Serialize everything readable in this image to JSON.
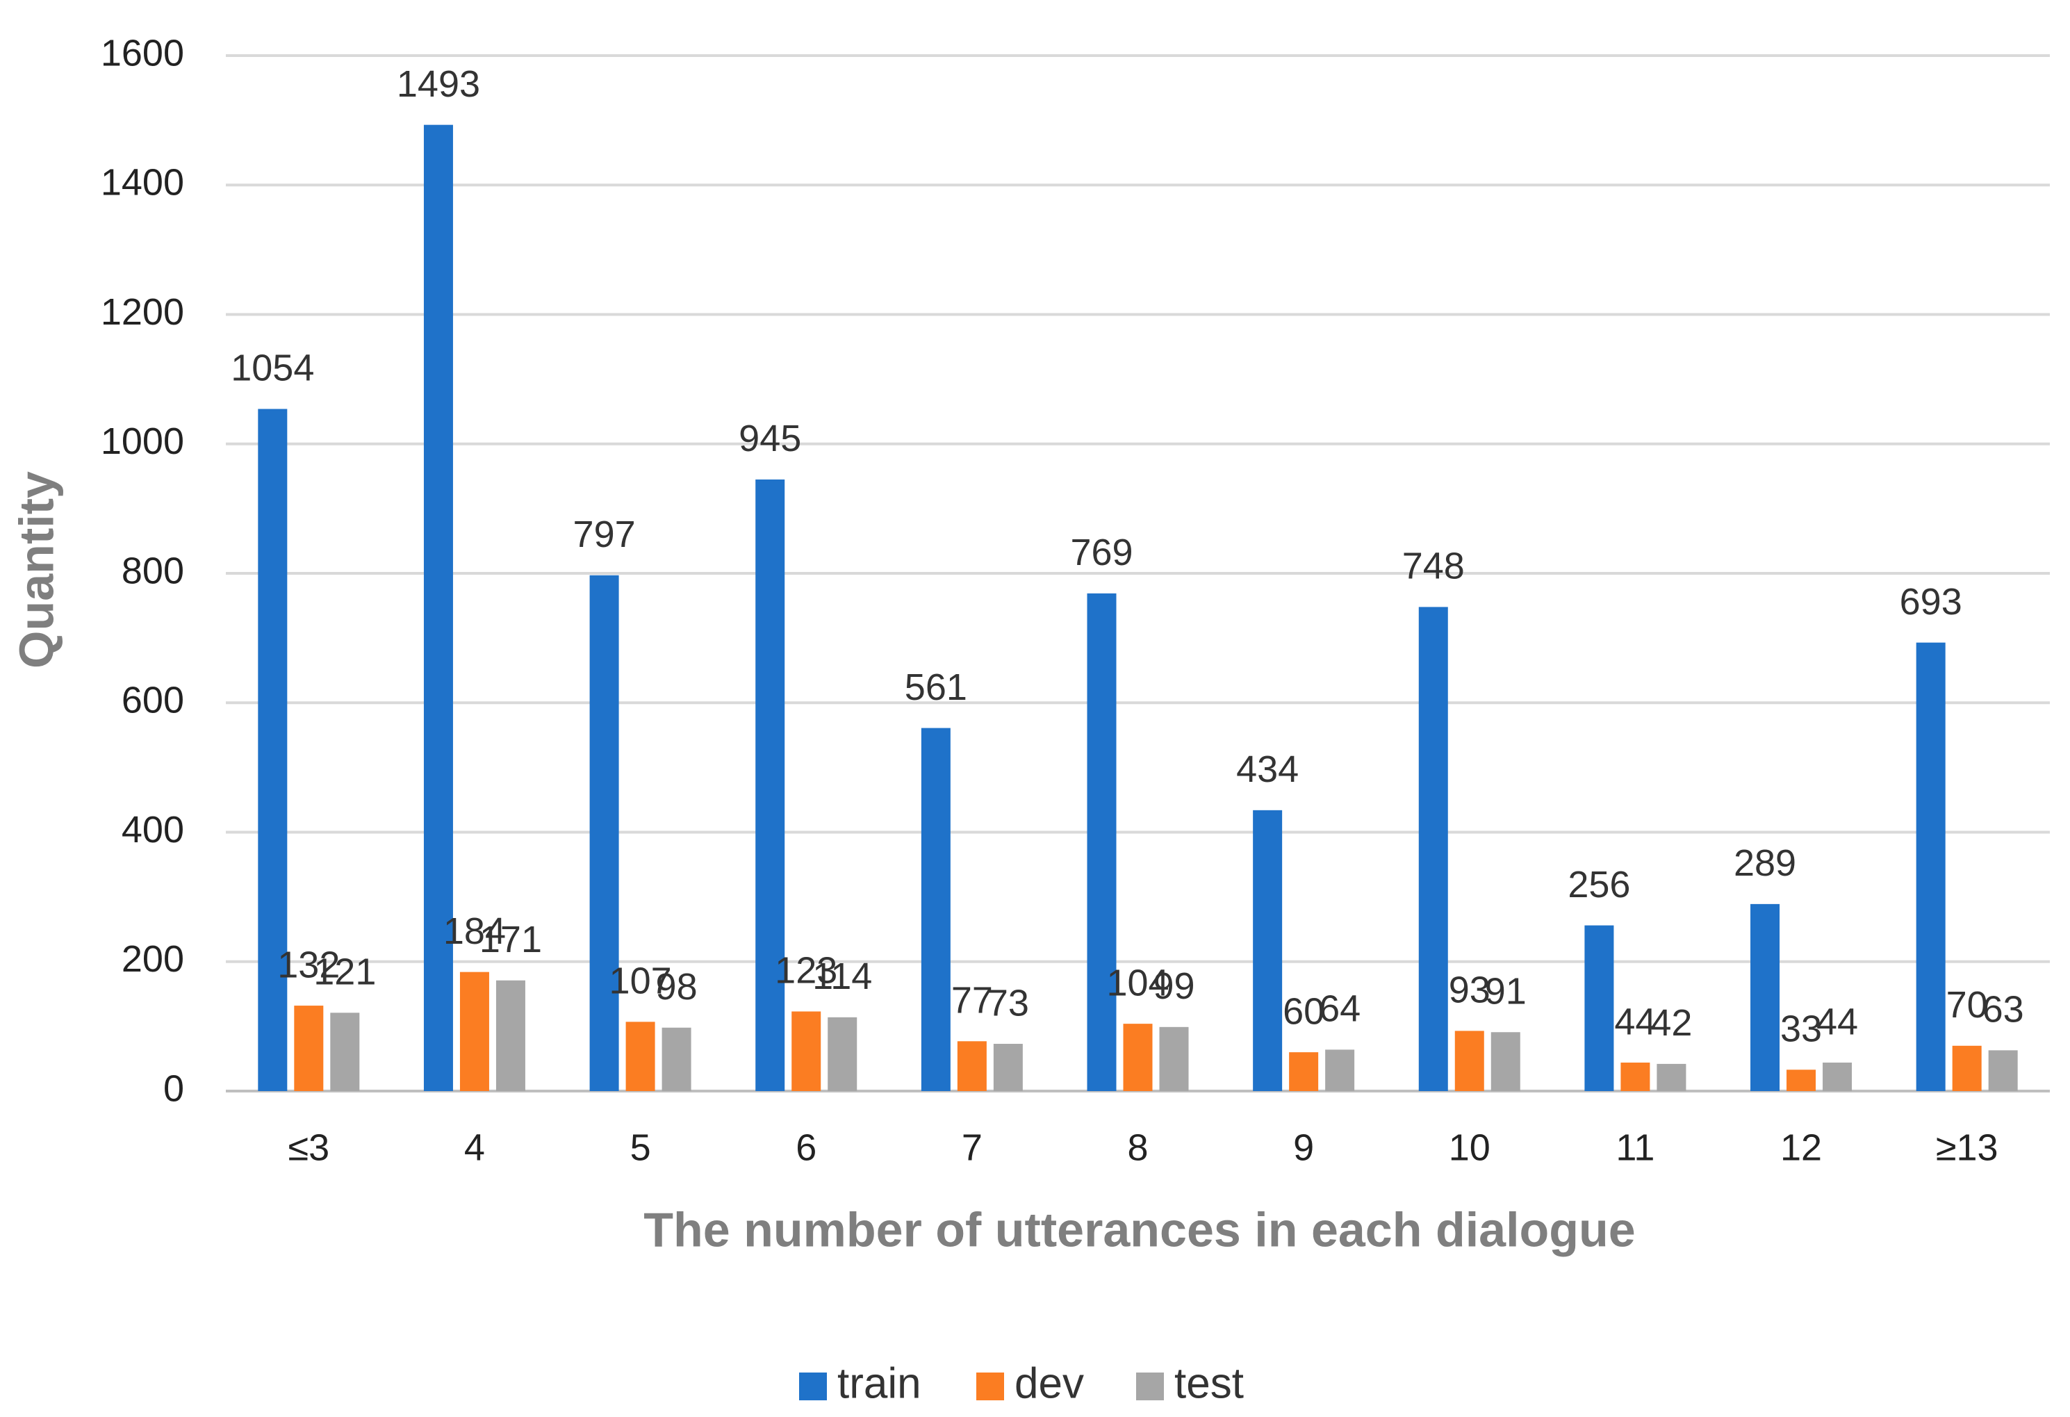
{
  "chart_data": {
    "type": "bar",
    "xlabel": "The number of utterances in each dialogue",
    "ylabel": "Quantity",
    "categories": [
      "≤3",
      "4",
      "5",
      "6",
      "7",
      "8",
      "9",
      "10",
      "11",
      "12",
      "≥13"
    ],
    "series": [
      {
        "name": "train",
        "color": "#1f72c9",
        "values": [
          1054,
          1493,
          797,
          945,
          561,
          769,
          434,
          748,
          256,
          289,
          693
        ]
      },
      {
        "name": "dev",
        "color": "#fb7d22",
        "values": [
          132,
          184,
          107,
          123,
          77,
          104,
          60,
          93,
          44,
          33,
          70
        ]
      },
      {
        "name": "test",
        "color": "#a6a6a6",
        "values": [
          121,
          171,
          98,
          114,
          73,
          99,
          64,
          91,
          42,
          44,
          63
        ]
      }
    ],
    "ylim": [
      0,
      1600
    ],
    "yticks": [
      0,
      200,
      400,
      600,
      800,
      1000,
      1200,
      1400,
      1600
    ],
    "grid": true,
    "legend": "bottom"
  }
}
